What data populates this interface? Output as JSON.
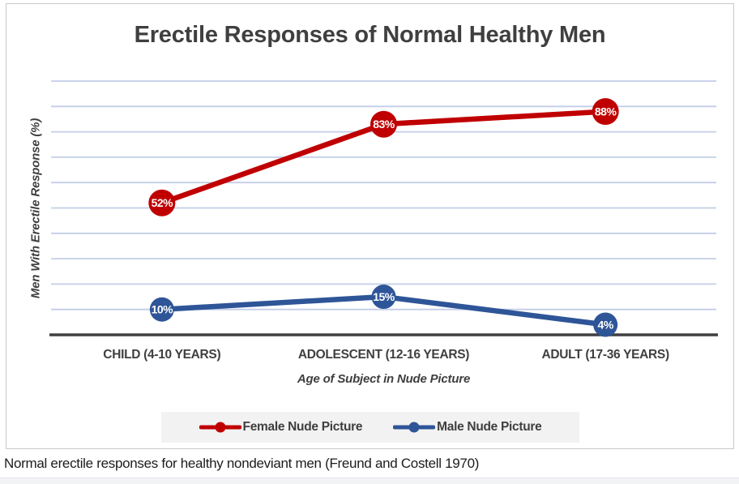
{
  "chart_data": {
    "type": "line",
    "title": "Erectile Responses of Normal Healthy Men",
    "categories": [
      "CHILD (4-10 YEARS)",
      "ADOLESCENT (12-16 YEARS)",
      "ADULT (17-36 YEARS)"
    ],
    "series": [
      {
        "name": "Female Nude Picture",
        "values": [
          52,
          83,
          88
        ],
        "color": "#C00000"
      },
      {
        "name": "Male Nude Picture",
        "values": [
          10,
          15,
          4
        ],
        "color": "#2E5597"
      }
    ],
    "xlabel": "Age of Subject in Nude Picture",
    "ylabel": "Men With Erectile Response (%)",
    "ylim": [
      0,
      100
    ],
    "grid_step": 10,
    "grid": true,
    "legend_position": "bottom",
    "data_label_format": "{value}%",
    "grid_color": "#b9c6e4",
    "axis_color": "#3f3f3f",
    "text_color": "#3f3f3f",
    "legend_bg": "#f2f2f2"
  },
  "caption": {
    "text": "Normal erectile responses for healthy nondeviant men (Freund and Costell 1970)"
  }
}
